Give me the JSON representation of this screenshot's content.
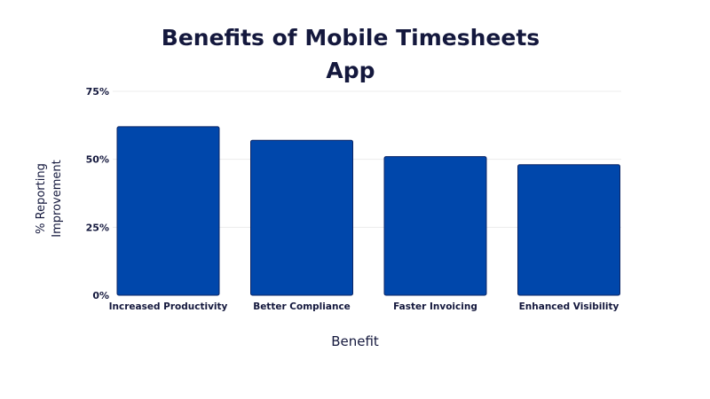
{
  "chart_data": {
    "type": "bar",
    "title_lines": [
      "Benefits of Mobile Timesheets",
      "App"
    ],
    "categories": [
      "Increased Productivity",
      "Better Compliance",
      "Faster Invoicing",
      "Enhanced Visibility"
    ],
    "values": [
      62,
      57,
      51,
      48
    ],
    "ylim": [
      0,
      75
    ],
    "yticks": [
      0,
      25,
      50,
      75
    ],
    "ytick_labels": [
      "0%",
      "25%",
      "50%",
      "75%"
    ],
    "xlabel": "Benefit",
    "ylabel_lines": [
      "% Reporting",
      "Improvement"
    ],
    "grid": true,
    "legend": "none"
  },
  "colors": {
    "bar": "#0047AB",
    "bar_edge": "#0b2566",
    "text": "#14183d",
    "grid": "#ececec"
  }
}
